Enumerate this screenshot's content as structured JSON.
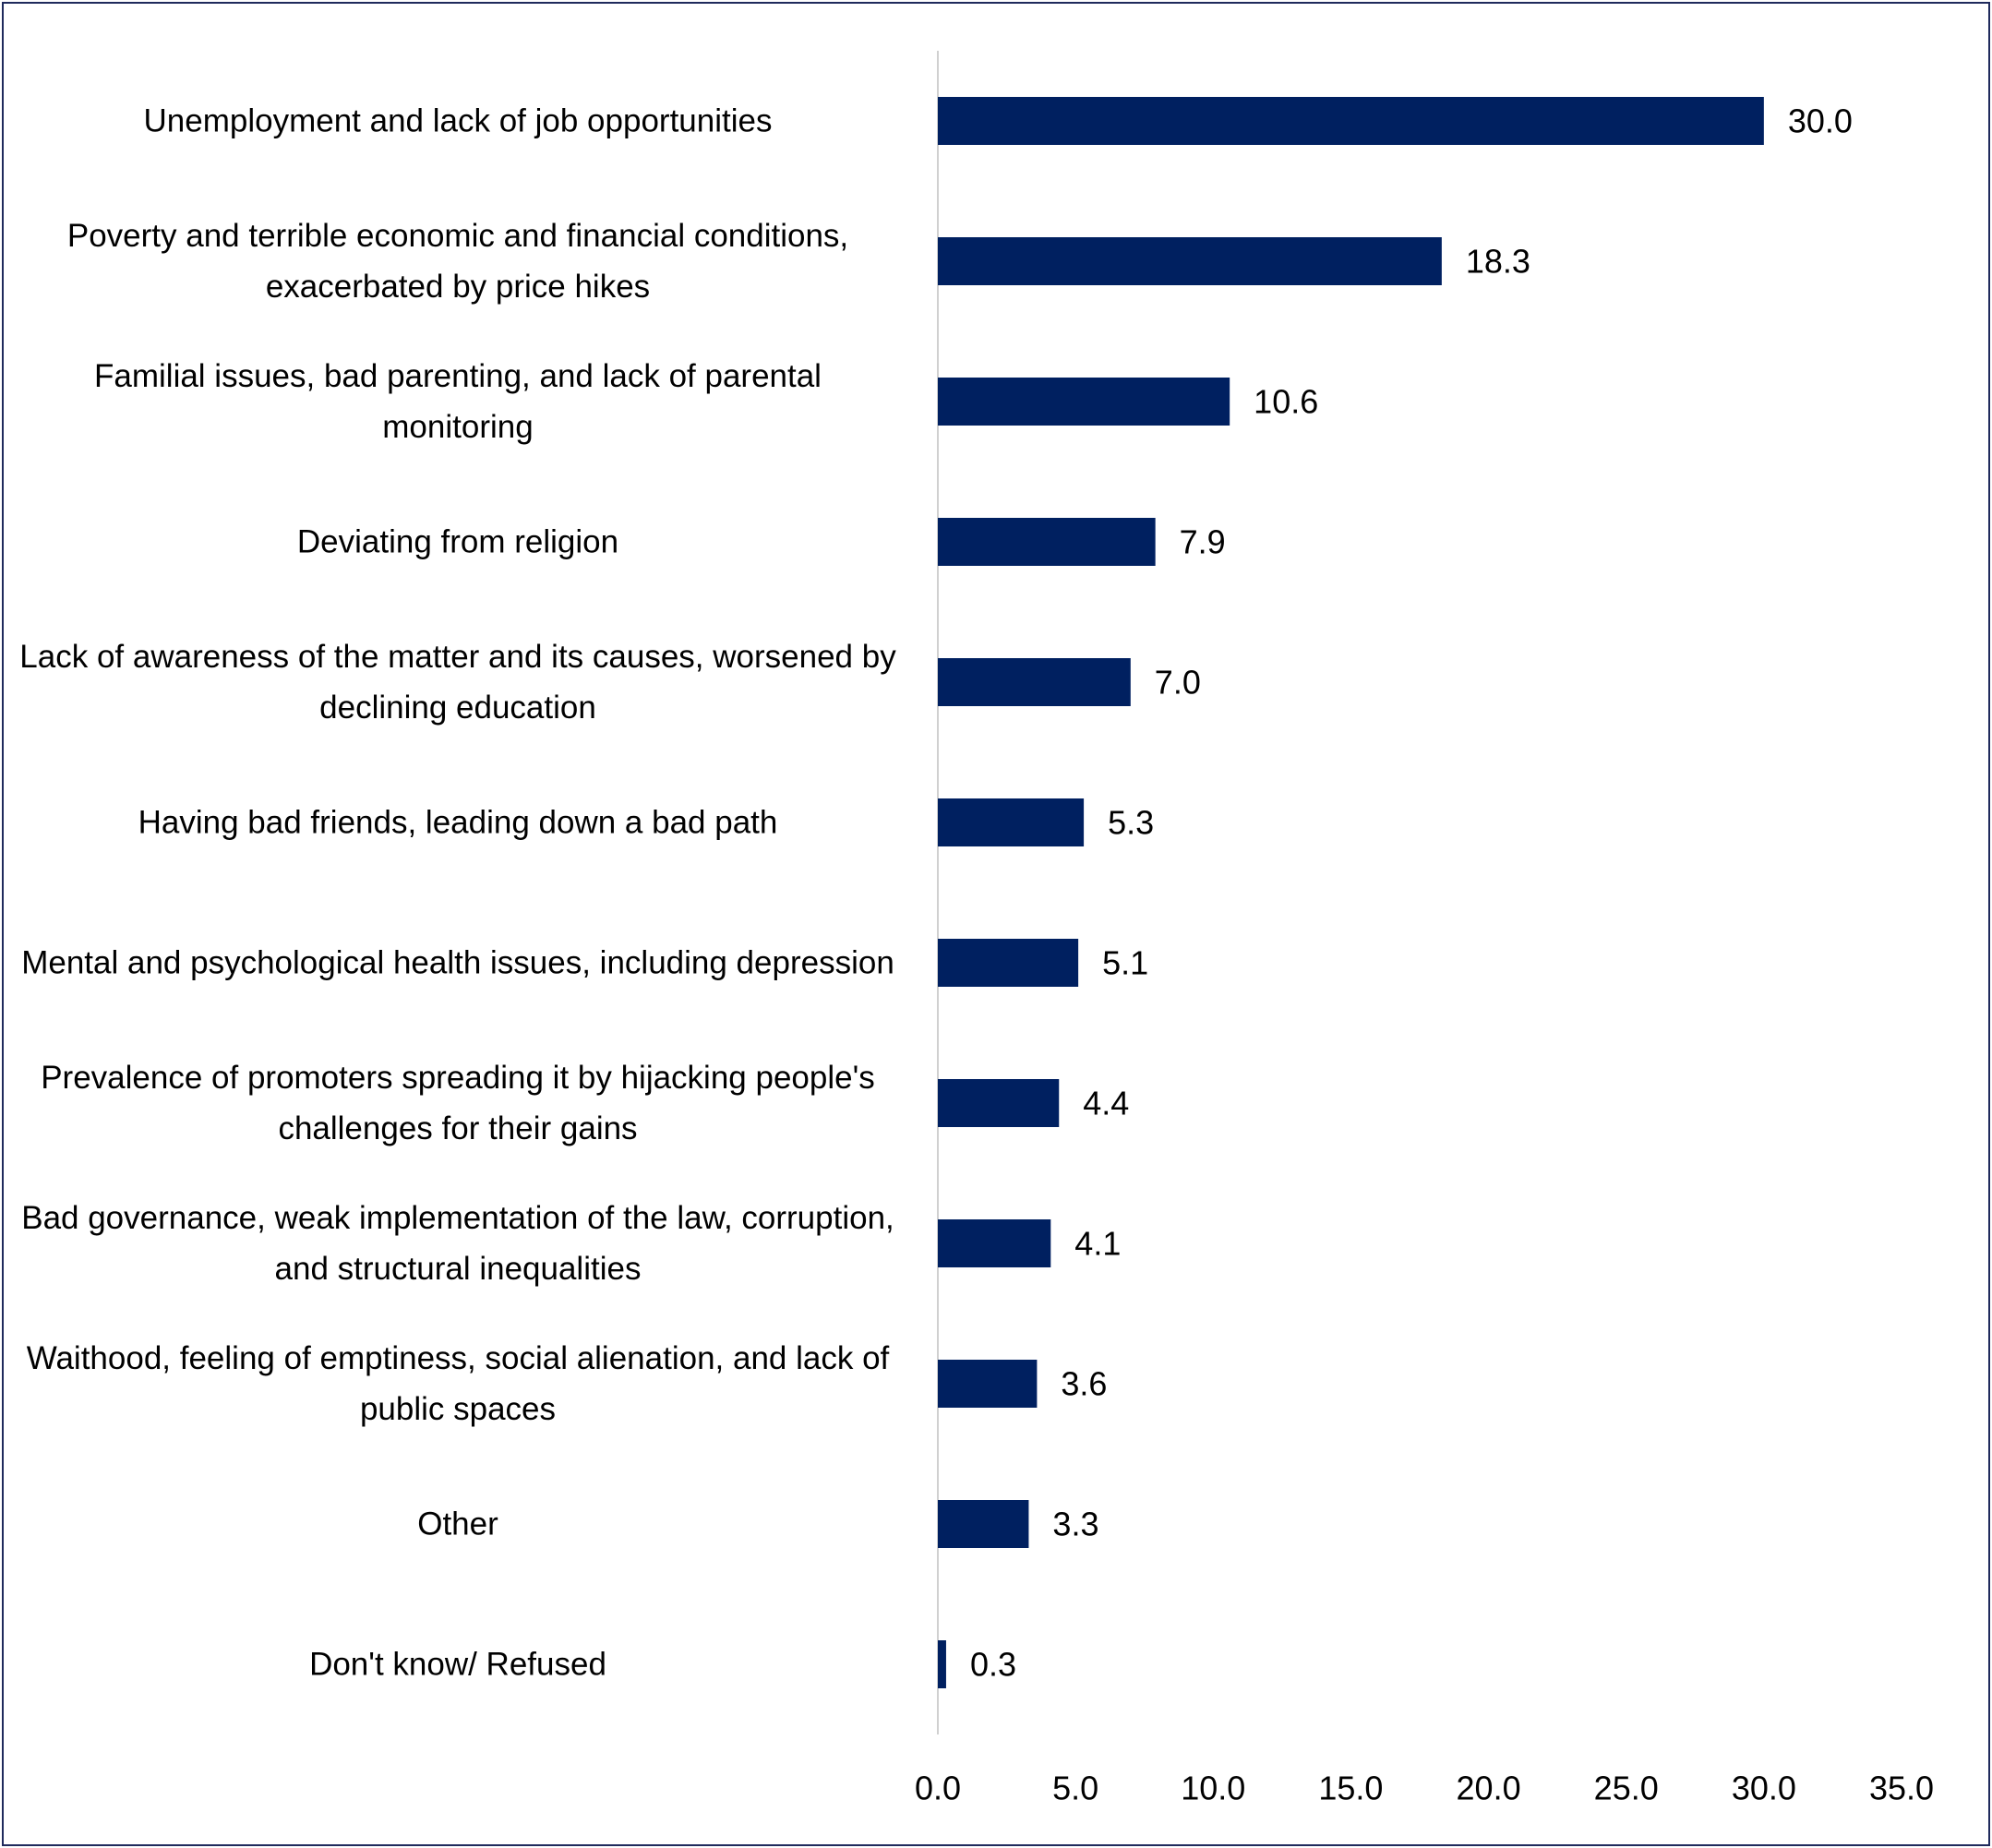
{
  "chart_data": {
    "type": "bar",
    "orientation": "horizontal",
    "categories": [
      "Unemployment and lack of job opportunities",
      "Poverty and terrible economic and financial conditions, exacerbated by price hikes",
      "Familial issues, bad parenting, and lack of parental monitoring",
      "Deviating from religion",
      "Lack of awareness of the matter and its causes, worsened by declining education",
      "Having bad friends, leading down a bad path",
      "Mental and psychological health issues, including depression",
      "Prevalence of promoters spreading it by hijacking people's challenges for their gains",
      "Bad governance, weak implementation of the law, corruption, and structural inequalities",
      "Waithood, feeling of emptiness, social alienation, and lack of public spaces",
      "Other",
      "Don't know/ Refused"
    ],
    "values": [
      30.0,
      18.3,
      10.6,
      7.9,
      7.0,
      5.3,
      5.1,
      4.4,
      4.1,
      3.6,
      3.3,
      0.3
    ],
    "value_labels": [
      "30.0",
      "18.3",
      "10.6",
      "7.9",
      "7.0",
      "5.3",
      "5.1",
      "4.4",
      "4.1",
      "3.6",
      "3.3",
      "0.3"
    ],
    "color": "#002060",
    "xlim": [
      0,
      35
    ],
    "xticks": [
      {
        "value": 0,
        "label": "0.0"
      },
      {
        "value": 5,
        "label": "5.0"
      },
      {
        "value": 10,
        "label": "10.0"
      },
      {
        "value": 15,
        "label": "15.0"
      },
      {
        "value": 20,
        "label": "20.0"
      },
      {
        "value": 25,
        "label": "25.0"
      },
      {
        "value": 30,
        "label": "30.0"
      },
      {
        "value": 35,
        "label": "35.0"
      }
    ],
    "grid": false
  }
}
